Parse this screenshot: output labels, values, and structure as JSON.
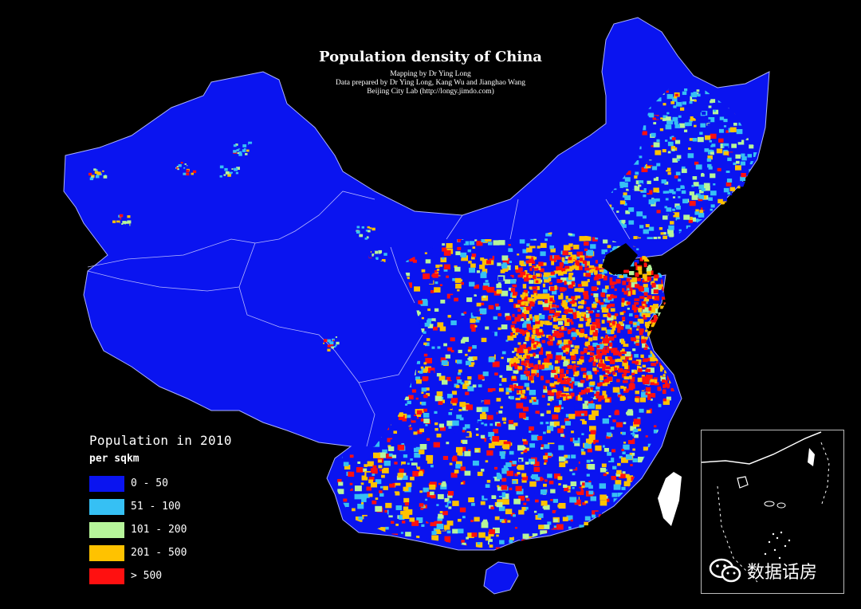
{
  "title": "Population density of China",
  "credits": [
    "Mapping by Dr Ying Long",
    "Data prepared by Dr Ying Long, Kang Wu and Jianghao Wang",
    "Beijing City Lab (http://longy.jimdo.com)"
  ],
  "legend": {
    "title": "Population in 2010",
    "unit": "per sqkm",
    "classes": [
      {
        "label": "0 - 50",
        "color": "#0a14f0"
      },
      {
        "label": "51 - 100",
        "color": "#36c0f4"
      },
      {
        "label": "101 - 200",
        "color": "#b6f59a"
      },
      {
        "label": "201 - 500",
        "color": "#ffc200"
      },
      {
        "label": "> 500",
        "color": "#ff1010"
      }
    ]
  },
  "watermark": {
    "text": "数据话房",
    "icon": "wechat-icon"
  },
  "colors": {
    "background": "#000000",
    "land_base": "#0a14f0",
    "borders": "#c8c8ff"
  }
}
